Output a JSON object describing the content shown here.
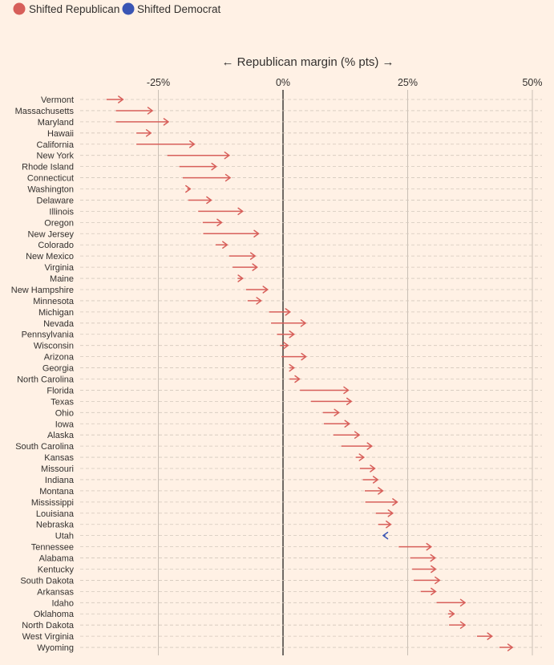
{
  "legend": {
    "items": [
      {
        "label": "Shifted Republican",
        "color": "#d75f5a"
      },
      {
        "label": "Shifted Democrat",
        "color": "#3a55b4"
      }
    ]
  },
  "chart_data": {
    "type": "arrow-dot",
    "title": "",
    "xlabel": "← Republican margin (% pts) →",
    "ylabel": "",
    "xlim": [
      -42,
      52
    ],
    "xticks": [
      -25,
      0,
      25,
      50
    ],
    "xtick_labels": [
      "-25%",
      "0%",
      "25%",
      "50%"
    ],
    "grid": true,
    "legend_position": "top-left",
    "series_colors": {
      "republican": "#d75f5a",
      "democrat": "#3a55b4"
    },
    "states": [
      {
        "name": "Vermont",
        "from": -35.4,
        "to": -32.1
      },
      {
        "name": "Massachusetts",
        "from": -33.5,
        "to": -26.2
      },
      {
        "name": "Maryland",
        "from": -33.5,
        "to": -23.0
      },
      {
        "name": "Hawaii",
        "from": -29.4,
        "to": -26.5
      },
      {
        "name": "California",
        "from": -29.4,
        "to": -17.8
      },
      {
        "name": "New York",
        "from": -23.2,
        "to": -10.8
      },
      {
        "name": "Rhode Island",
        "from": -20.8,
        "to": -13.4
      },
      {
        "name": "Connecticut",
        "from": -20.1,
        "to": -10.6
      },
      {
        "name": "Washington",
        "from": -19.2,
        "to": -18.6
      },
      {
        "name": "Delaware",
        "from": -19.0,
        "to": -14.4
      },
      {
        "name": "Illinois",
        "from": -17.0,
        "to": -8.1
      },
      {
        "name": "Oregon",
        "from": -16.1,
        "to": -12.3
      },
      {
        "name": "New Jersey",
        "from": -16.0,
        "to": -4.9
      },
      {
        "name": "Colorado",
        "from": -13.5,
        "to": -11.2
      },
      {
        "name": "New Mexico",
        "from": -10.8,
        "to": -5.6
      },
      {
        "name": "Virginia",
        "from": -10.1,
        "to": -5.2
      },
      {
        "name": "Maine",
        "from": -9.1,
        "to": -8.1
      },
      {
        "name": "New Hampshire",
        "from": -7.4,
        "to": -3.1
      },
      {
        "name": "Minnesota",
        "from": -7.1,
        "to": -4.4
      },
      {
        "name": "Michigan",
        "from": -2.8,
        "to": 1.4
      },
      {
        "name": "Nevada",
        "from": -2.4,
        "to": 4.5
      },
      {
        "name": "Pennsylvania",
        "from": -1.2,
        "to": 2.2
      },
      {
        "name": "Wisconsin",
        "from": -0.6,
        "to": 1.0
      },
      {
        "name": "Arizona",
        "from": -0.3,
        "to": 4.6
      },
      {
        "name": "Georgia",
        "from": 1.3,
        "to": 2.2
      },
      {
        "name": "North Carolina",
        "from": 1.3,
        "to": 3.3
      },
      {
        "name": "Florida",
        "from": 3.4,
        "to": 13.1
      },
      {
        "name": "Texas",
        "from": 5.6,
        "to": 13.7
      },
      {
        "name": "Ohio",
        "from": 8.0,
        "to": 11.2
      },
      {
        "name": "Iowa",
        "from": 8.2,
        "to": 13.3
      },
      {
        "name": "Alaska",
        "from": 10.1,
        "to": 15.3
      },
      {
        "name": "South Carolina",
        "from": 11.7,
        "to": 17.8
      },
      {
        "name": "Kansas",
        "from": 14.6,
        "to": 16.2
      },
      {
        "name": "Missouri",
        "from": 15.4,
        "to": 18.4
      },
      {
        "name": "Indiana",
        "from": 16.0,
        "to": 19.0
      },
      {
        "name": "Montana",
        "from": 16.4,
        "to": 20.0
      },
      {
        "name": "Mississippi",
        "from": 16.5,
        "to": 22.9
      },
      {
        "name": "Louisiana",
        "from": 18.6,
        "to": 22.0
      },
      {
        "name": "Nebraska",
        "from": 19.1,
        "to": 21.6
      },
      {
        "name": "Utah",
        "from": 20.5,
        "to": 20.1
      },
      {
        "name": "Tennessee",
        "from": 23.2,
        "to": 29.7
      },
      {
        "name": "Alabama",
        "from": 25.5,
        "to": 30.5
      },
      {
        "name": "Kentucky",
        "from": 25.9,
        "to": 30.6
      },
      {
        "name": "South Dakota",
        "from": 26.2,
        "to": 31.4
      },
      {
        "name": "Arkansas",
        "from": 27.6,
        "to": 30.6
      },
      {
        "name": "Idaho",
        "from": 30.8,
        "to": 36.5
      },
      {
        "name": "Oklahoma",
        "from": 33.1,
        "to": 34.3
      },
      {
        "name": "North Dakota",
        "from": 33.3,
        "to": 36.5
      },
      {
        "name": "West Virginia",
        "from": 38.9,
        "to": 41.9
      },
      {
        "name": "Wyoming",
        "from": 43.4,
        "to": 46.0
      }
    ]
  }
}
